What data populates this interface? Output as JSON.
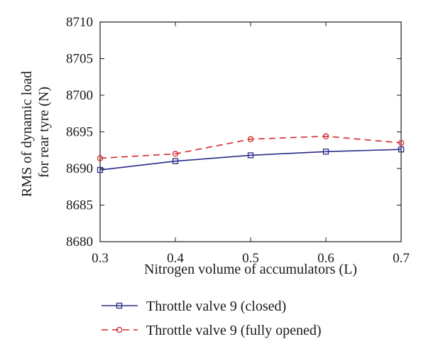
{
  "chart_data": {
    "type": "line",
    "xlabel": "Nitrogen volume of accumulators (L)",
    "ylabel_lines": [
      "RMS of dynamic load",
      "for rear tyre (N)"
    ],
    "x": [
      0.3,
      0.4,
      0.5,
      0.6,
      0.7
    ],
    "xlim": [
      0.3,
      0.7
    ],
    "ylim": [
      8680,
      8710
    ],
    "xticks": [
      "0.3",
      "0.4",
      "0.5",
      "0.6",
      "0.7"
    ],
    "yticks": [
      "8680",
      "8685",
      "8690",
      "8695",
      "8700",
      "8705",
      "8710"
    ],
    "grid": false,
    "legend_position": "bottom",
    "series": [
      {
        "name": "Throttle valve 9 (closed)",
        "values": [
          8689.8,
          8691.0,
          8691.8,
          8692.3,
          8692.6
        ],
        "color": "#2b2b8a",
        "line_style": "solid",
        "marker": "square"
      },
      {
        "name": "Throttle valve 9 (fully opened)",
        "values": [
          8691.4,
          8692.0,
          8694.0,
          8694.4,
          8693.5
        ],
        "color": "#d42a2a",
        "line_style": "dashed",
        "marker": "circle"
      }
    ]
  }
}
